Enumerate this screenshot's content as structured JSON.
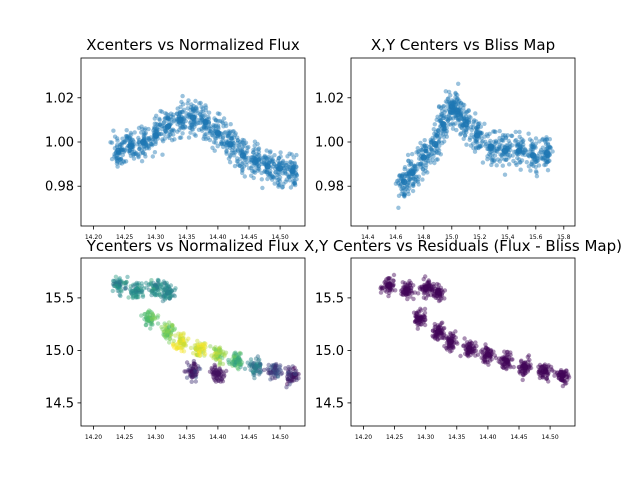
{
  "colors": {
    "scatter_blue": "#1f77b4",
    "viridis": [
      "#440154",
      "#3b528b",
      "#21918c",
      "#5ec962",
      "#fde725"
    ]
  },
  "chart_data": [
    {
      "type": "scatter",
      "title": "Xcenters vs Normalized Flux",
      "xlim": [
        14.18,
        14.54
      ],
      "ylim": [
        0.962,
        1.038
      ],
      "xticks": [
        14.2,
        14.25,
        14.3,
        14.35,
        14.4,
        14.45,
        14.5
      ],
      "xtick_labels": [
        "14.20",
        "14.25",
        "14.30",
        "14.35",
        "14.40",
        "14.45",
        "14.50"
      ],
      "yticks": [
        0.98,
        1.0,
        1.02
      ],
      "ytick_labels": [
        "0.98",
        "1.00",
        "1.02"
      ],
      "color": "#1f77b4",
      "points": [
        [
          14.24,
          0.996
        ],
        [
          14.26,
          0.998
        ],
        [
          14.28,
          1.0
        ],
        [
          14.3,
          1.003
        ],
        [
          14.32,
          1.007
        ],
        [
          14.34,
          1.01
        ],
        [
          14.36,
          1.011
        ],
        [
          14.38,
          1.009
        ],
        [
          14.4,
          1.004
        ],
        [
          14.42,
          0.999
        ],
        [
          14.44,
          0.994
        ],
        [
          14.46,
          0.991
        ],
        [
          14.48,
          0.989
        ],
        [
          14.5,
          0.988
        ],
        [
          14.52,
          0.987
        ]
      ]
    },
    {
      "type": "scatter",
      "title": "X,Y Centers vs Bliss Map",
      "xlim": [
        14.28,
        15.88
      ],
      "ylim": [
        0.962,
        1.038
      ],
      "xticks": [
        14.4,
        14.6,
        14.8,
        15.0,
        15.2,
        15.4,
        15.6,
        15.8
      ],
      "xtick_labels": [
        "14.4",
        "14.6",
        "14.8",
        "15.0",
        "15.2",
        "15.4",
        "15.6",
        "15.8"
      ],
      "yticks": [
        0.98,
        1.0,
        1.02
      ],
      "ytick_labels": [
        "0.98",
        "1.00",
        "1.02"
      ],
      "color": "#1f77b4",
      "points": [
        [
          14.66,
          0.982
        ],
        [
          14.72,
          0.986
        ],
        [
          14.8,
          0.993
        ],
        [
          14.88,
          0.999
        ],
        [
          14.94,
          1.008
        ],
        [
          15.0,
          1.016
        ],
        [
          15.04,
          1.014
        ],
        [
          15.1,
          1.008
        ],
        [
          15.18,
          1.003
        ],
        [
          15.28,
          0.998
        ],
        [
          15.38,
          0.996
        ],
        [
          15.48,
          0.996
        ],
        [
          15.58,
          0.994
        ],
        [
          15.68,
          0.995
        ]
      ]
    },
    {
      "type": "scatter",
      "title": "Ycenters vs Normalized Flux",
      "xlim": [
        14.18,
        14.54
      ],
      "ylim": [
        14.28,
        15.88
      ],
      "xticks": [
        14.2,
        14.25,
        14.3,
        14.35,
        14.4,
        14.45,
        14.5
      ],
      "xtick_labels": [
        "14.20",
        "14.25",
        "14.30",
        "14.35",
        "14.40",
        "14.45",
        "14.50"
      ],
      "yticks": [
        14.5,
        15.0,
        15.5
      ],
      "ytick_labels": [
        "14.5",
        "15.0",
        "15.5"
      ],
      "colormap": "viridis",
      "points": [
        [
          14.24,
          15.62,
          0.45
        ],
        [
          14.27,
          15.58,
          0.5
        ],
        [
          14.3,
          15.6,
          0.5
        ],
        [
          14.32,
          15.55,
          0.45
        ],
        [
          14.29,
          15.3,
          0.7
        ],
        [
          14.32,
          15.18,
          0.8
        ],
        [
          14.34,
          15.08,
          0.95
        ],
        [
          14.37,
          15.02,
          0.95
        ],
        [
          14.4,
          14.96,
          0.85
        ],
        [
          14.43,
          14.9,
          0.65
        ],
        [
          14.46,
          14.84,
          0.4
        ],
        [
          14.49,
          14.8,
          0.2
        ],
        [
          14.52,
          14.76,
          0.1
        ],
        [
          14.4,
          14.78,
          0.05
        ],
        [
          14.36,
          14.8,
          0.1
        ]
      ]
    },
    {
      "type": "scatter",
      "title": "X,Y Centers vs Residuals (Flux - Bliss Map)",
      "xlim": [
        14.18,
        14.54
      ],
      "ylim": [
        14.28,
        15.88
      ],
      "xticks": [
        14.2,
        14.25,
        14.3,
        14.35,
        14.4,
        14.45,
        14.5
      ],
      "xtick_labels": [
        "14.20",
        "14.25",
        "14.30",
        "14.35",
        "14.40",
        "14.45",
        "14.50"
      ],
      "yticks": [
        14.5,
        15.0,
        15.5
      ],
      "ytick_labels": [
        "14.5",
        "15.0",
        "15.5"
      ],
      "colormap": "viridis",
      "points": [
        [
          14.24,
          15.62,
          0.02
        ],
        [
          14.27,
          15.58,
          0.02
        ],
        [
          14.3,
          15.6,
          0.02
        ],
        [
          14.32,
          15.55,
          0.02
        ],
        [
          14.29,
          15.3,
          0.02
        ],
        [
          14.32,
          15.18,
          0.02
        ],
        [
          14.34,
          15.08,
          0.02
        ],
        [
          14.37,
          15.02,
          0.02
        ],
        [
          14.4,
          14.96,
          0.02
        ],
        [
          14.43,
          14.9,
          0.02
        ],
        [
          14.46,
          14.84,
          0.02
        ],
        [
          14.49,
          14.8,
          0.02
        ],
        [
          14.52,
          14.76,
          0.02
        ]
      ]
    }
  ]
}
